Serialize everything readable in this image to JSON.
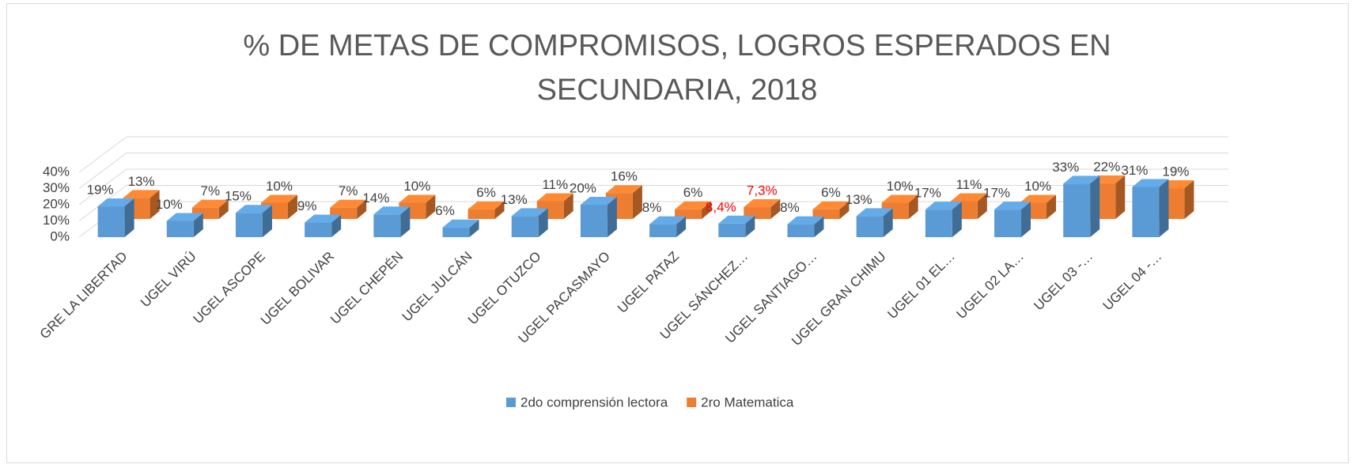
{
  "chart_data": {
    "type": "bar3d",
    "title": "% DE METAS DE COMPROMISOS, LOGROS ESPERADOS EN SECUNDARIA, 2018",
    "categories": [
      "GRE LA LIBERTAD",
      "UGEL  VIRÚ",
      "UGEL  ASCOPE",
      "UGEL BOLIVAR",
      "UGEL CHEPÉN",
      "UGEL JULCÁN",
      "UGEL OTUZCO",
      "UGEL PACASMAYO",
      "UGEL PATAZ",
      "UGEL SÁNCHEZ…",
      "UGEL SANTIAGO…",
      "UGEL  GRAN CHIMU",
      "UGEL  01 EL…",
      "UGEL 02 LA…",
      "UGEL 03 -…",
      "UGEL 04 -…"
    ],
    "series": [
      {
        "name": "2do comprensión lectora",
        "color": "#5b9bd5",
        "values": [
          19,
          10,
          15,
          9,
          14,
          6,
          13,
          20,
          8,
          8.4,
          8,
          13,
          17,
          17,
          33,
          31
        ],
        "value_labels": [
          "19%",
          "10%",
          "15%",
          "9%",
          "14%",
          "6%",
          "13%",
          "20%",
          "8%",
          "8,4%",
          "8%",
          "13%",
          "17%",
          "17%",
          "33%",
          "31%"
        ],
        "value_label_colors": [
          "#404040",
          "#404040",
          "#404040",
          "#404040",
          "#404040",
          "#404040",
          "#404040",
          "#404040",
          "#404040",
          "#ff0000",
          "#404040",
          "#404040",
          "#404040",
          "#404040",
          "#404040",
          "#404040"
        ]
      },
      {
        "name": "2ro Matematica",
        "color": "#ed7d31",
        "values": [
          13,
          7,
          10,
          7,
          10,
          6,
          11,
          16,
          6,
          7.3,
          6,
          10,
          11,
          10,
          22,
          19
        ],
        "value_labels": [
          "13%",
          "7%",
          "10%",
          "7%",
          "10%",
          "6%",
          "11%",
          "16%",
          "6%",
          "7,3%",
          "6%",
          "10%",
          "11%",
          "10%",
          "22%",
          "19%"
        ],
        "value_label_colors": [
          "#404040",
          "#404040",
          "#404040",
          "#404040",
          "#404040",
          "#404040",
          "#404040",
          "#404040",
          "#404040",
          "#ff0000",
          "#404040",
          "#404040",
          "#404040",
          "#404040",
          "#404040",
          "#404040"
        ]
      }
    ],
    "ylim": [
      0,
      40
    ],
    "yticks": [
      {
        "value": 0,
        "label": "0%"
      },
      {
        "value": 10,
        "label": "10%"
      },
      {
        "value": 20,
        "label": "20%"
      },
      {
        "value": 30,
        "label": "30%"
      },
      {
        "value": 40,
        "label": "40%"
      }
    ],
    "grid": true,
    "legend": "bottom"
  }
}
